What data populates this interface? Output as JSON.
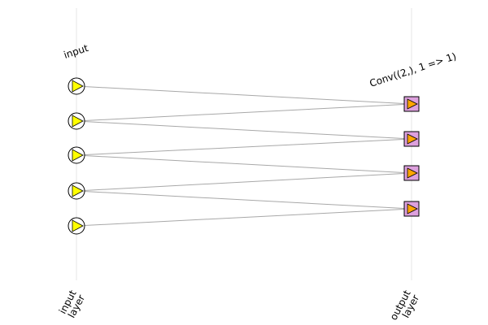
{
  "diagram": {
    "input_layer_title": "input",
    "output_layer_title": "Conv((2,), 1 => 1)",
    "input_axis_label": [
      "input",
      "layer"
    ],
    "output_axis_label": [
      "output",
      "layer"
    ],
    "input_node_count": 5,
    "output_node_count": 4,
    "kernel_size": 2,
    "colors": {
      "input_triangle": "#ffff00",
      "output_square": "#dda0dd",
      "output_triangle": "#ffa500",
      "edge": "#a8a8a8",
      "guide": "#e6e6e6"
    }
  }
}
